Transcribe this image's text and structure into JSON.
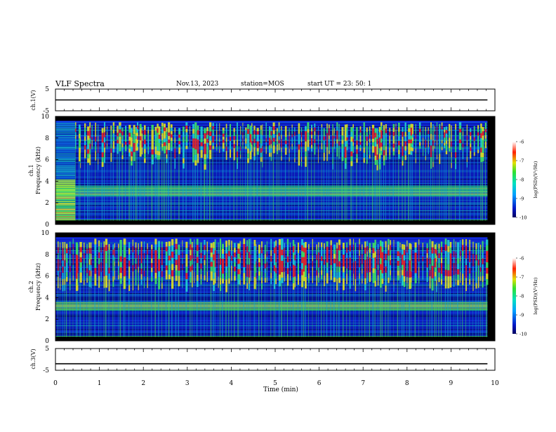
{
  "header": {
    "title": "VLF Spectra",
    "date": "Nov.13, 2023",
    "station": "station=MOS",
    "start_label": "start",
    "start_time": "UT =  23: 50: 1"
  },
  "colors": {
    "spectrogram_background": "#000000",
    "floor": "#0b1bb8",
    "band": "#3fe060",
    "burst": "#f02020",
    "trace": "#000000"
  },
  "chart_data": [
    {
      "type": "line",
      "name": "ch1-voltage",
      "ylabel": "ch.1(V)",
      "ylim": [
        -5,
        5
      ],
      "yticks": [
        "5",
        "-5"
      ],
      "x": [
        0,
        9.83
      ],
      "values": [
        0,
        0
      ]
    },
    {
      "type": "heatmap",
      "name": "ch1-spectrogram",
      "ylabel": "ch.1\nFrequency (kHz)",
      "xlim": [
        0,
        10
      ],
      "ylim": [
        0,
        10
      ],
      "yticks": [
        "0",
        "2",
        "4",
        "6",
        "8",
        "10"
      ],
      "data_end_min": 9.83,
      "features": {
        "saturated_segment_min": [
          0,
          0.45
        ],
        "hum_band_khz": [
          2.6,
          3.6
        ],
        "burst_range_khz": [
          5,
          9.5
        ]
      }
    },
    {
      "type": "heatmap",
      "name": "ch2-spectrogram",
      "ylabel": "ch.2\nFrequency (kHz)",
      "xlim": [
        0,
        10
      ],
      "ylim": [
        0,
        10
      ],
      "yticks": [
        "0",
        "2",
        "4",
        "6",
        "8",
        "10"
      ],
      "data_end_min": 9.83,
      "features": {
        "hum_band_khz": [
          2.8,
          3.6
        ],
        "burst_range_khz": [
          4.5,
          9.5
        ]
      }
    },
    {
      "type": "line",
      "name": "ch3-voltage",
      "ylabel": "ch.3(V)",
      "ylim": [
        -5,
        5
      ],
      "yticks": [
        "5",
        "-5"
      ],
      "x": [
        0,
        9.83
      ],
      "values": [
        -2,
        -2
      ]
    }
  ],
  "x_axis": {
    "label": "Time  (min)",
    "ticks": [
      "0",
      "1",
      "2",
      "3",
      "4",
      "5",
      "6",
      "7",
      "8",
      "9",
      "10"
    ]
  },
  "colorbars": [
    {
      "name": "ch1-colorbar",
      "label": "log(PSD)(V²/Hz)",
      "ticks": [
        "-6",
        "-7",
        "-8",
        "-9",
        "-10"
      ],
      "range": [
        -10,
        -6
      ]
    },
    {
      "name": "ch2-colorbar",
      "label": "log(PSD)(V²/Hz)",
      "ticks": [
        "-6",
        "-7",
        "-8",
        "-9",
        "-10"
      ],
      "range": [
        -10,
        -6
      ]
    }
  ]
}
